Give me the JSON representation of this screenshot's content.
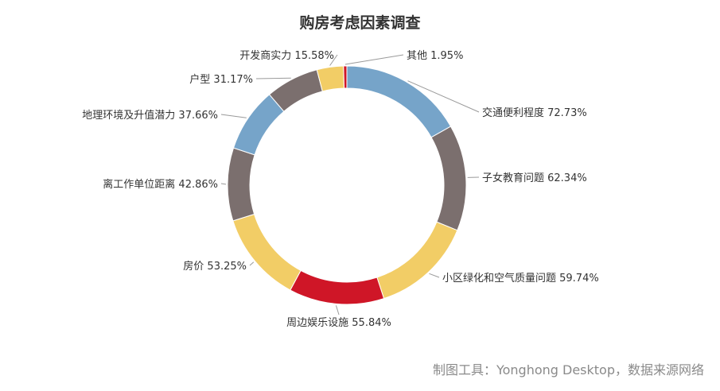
{
  "chart_data": {
    "type": "pie",
    "title": "购房考虑因素调查",
    "style": "donut",
    "slices": [
      {
        "label": "交通便利程度",
        "value": 72.73,
        "display": "72.73%",
        "color": "#76a4c9"
      },
      {
        "label": "子女教育问题",
        "value": 62.34,
        "display": "62.34%",
        "color": "#7b6f6e"
      },
      {
        "label": "小区绿化和空气质量问题",
        "value": 59.74,
        "display": "59.74%",
        "color": "#f2cd66"
      },
      {
        "label": "周边娱乐设施",
        "value": 55.84,
        "display": "55.84%",
        "color": "#cf1627"
      },
      {
        "label": "房价",
        "value": 53.25,
        "display": "53.25%",
        "color": "#f2cd66"
      },
      {
        "label": "离工作单位距离",
        "value": 42.86,
        "display": "42.86%",
        "color": "#7b6f6e"
      },
      {
        "label": "地理环境及升值潜力",
        "value": 37.66,
        "display": "37.66%",
        "color": "#76a4c9"
      },
      {
        "label": "户型",
        "value": 31.17,
        "display": "31.17%",
        "color": "#7b6f6e"
      },
      {
        "label": "开发商实力",
        "value": 15.58,
        "display": "15.58%",
        "color": "#f2cd66"
      },
      {
        "label": "其他",
        "value": 1.95,
        "display": "1.95%",
        "color": "#cf1627"
      }
    ]
  },
  "footer": {
    "source": "制图工具：Yonghong Desktop，数据来源网络"
  }
}
